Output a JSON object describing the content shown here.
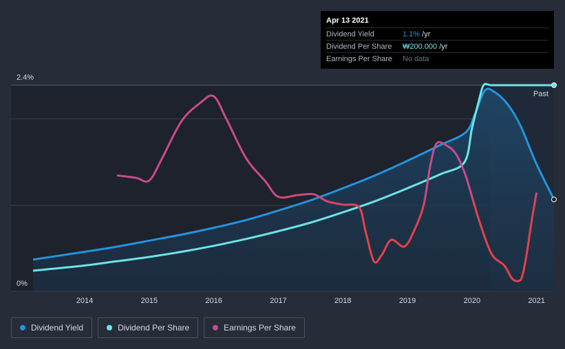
{
  "colors": {
    "background": "#262c38",
    "dividend_yield": "#2394df",
    "dividend_per_share": "#6ce5e8",
    "earnings_per_share": "#c94a8c",
    "earnings_per_share_low": "#e5414a",
    "grid": "#3a404c"
  },
  "tooltip": {
    "date": "Apr 13 2021",
    "rows": [
      {
        "label": "Dividend Yield",
        "value": "1.1%",
        "unit": " /yr"
      },
      {
        "label": "Dividend Per Share",
        "value": "₩200.000",
        "unit": " /yr"
      },
      {
        "label": "Earnings Per Share",
        "value": "No data",
        "unit": ""
      }
    ]
  },
  "chart_data": {
    "type": "line",
    "y_tick_labels": [
      "2.4%",
      "0%"
    ],
    "ylim": [
      0,
      2.4
    ],
    "xlim": [
      2013.2,
      2021.27
    ],
    "x_tick_labels": [
      "2014",
      "2015",
      "2016",
      "2017",
      "2018",
      "2019",
      "2020",
      "2021"
    ],
    "x_ticks": [
      2014,
      2015,
      2016,
      2017,
      2018,
      2019,
      2020,
      2021
    ],
    "past_label": "Past",
    "past_start": 2020.27,
    "series": [
      {
        "name": "Dividend Yield",
        "color": "#2394df",
        "x": [
          2013.2,
          2014.0,
          2014.5,
          2015.0,
          2015.5,
          2016.0,
          2016.5,
          2017.0,
          2017.5,
          2018.0,
          2018.5,
          2019.0,
          2019.5,
          2019.9,
          2020.05,
          2020.2,
          2020.35,
          2020.55,
          2020.75,
          2021.0,
          2021.27
        ],
        "values": [
          0.37,
          0.46,
          0.52,
          0.59,
          0.66,
          0.74,
          0.83,
          0.94,
          1.06,
          1.2,
          1.35,
          1.52,
          1.7,
          1.85,
          2.07,
          2.34,
          2.32,
          2.18,
          1.93,
          1.48,
          1.07
        ]
      },
      {
        "name": "Dividend Per Share",
        "color": "#6ce5e8",
        "x": [
          2013.2,
          2014.0,
          2014.5,
          2015.0,
          2015.5,
          2016.0,
          2016.5,
          2017.0,
          2017.5,
          2018.0,
          2018.5,
          2019.0,
          2019.5,
          2019.88,
          2020.0,
          2020.1,
          2020.18,
          2020.3,
          2020.6,
          2021.0,
          2021.27
        ],
        "values": [
          0.24,
          0.3,
          0.35,
          0.4,
          0.46,
          0.53,
          0.61,
          0.7,
          0.8,
          0.92,
          1.05,
          1.2,
          1.36,
          1.5,
          1.9,
          2.2,
          2.4,
          2.4,
          2.4,
          2.4,
          2.4
        ]
      },
      {
        "name": "Earnings Per Share",
        "color": "#c94a8c",
        "x": [
          2014.5,
          2014.8,
          2015.0,
          2015.2,
          2015.5,
          2015.8,
          2016.0,
          2016.2,
          2016.5,
          2016.8,
          2017.0,
          2017.3,
          2017.55,
          2017.75,
          2018.0,
          2018.25,
          2018.35,
          2018.48,
          2018.6,
          2018.75,
          2018.95,
          2019.1,
          2019.25,
          2019.35,
          2019.45,
          2019.6,
          2019.75,
          2019.9,
          2020.1,
          2020.3,
          2020.5,
          2020.62,
          2020.72,
          2020.78,
          2020.85,
          2020.92,
          2021.0
        ],
        "values": [
          1.35,
          1.32,
          1.29,
          1.55,
          1.98,
          2.2,
          2.27,
          2.0,
          1.55,
          1.28,
          1.1,
          1.12,
          1.13,
          1.05,
          1.01,
          0.98,
          0.7,
          0.35,
          0.42,
          0.6,
          0.52,
          0.7,
          1.0,
          1.45,
          1.72,
          1.7,
          1.6,
          1.35,
          0.85,
          0.44,
          0.3,
          0.15,
          0.12,
          0.18,
          0.45,
          0.8,
          1.15
        ]
      }
    ]
  },
  "legend": {
    "items": [
      {
        "label": "Dividend Yield",
        "color": "#2394df"
      },
      {
        "label": "Dividend Per Share",
        "color": "#6ce5e8"
      },
      {
        "label": "Earnings Per Share",
        "color": "#c94a8c"
      }
    ]
  }
}
